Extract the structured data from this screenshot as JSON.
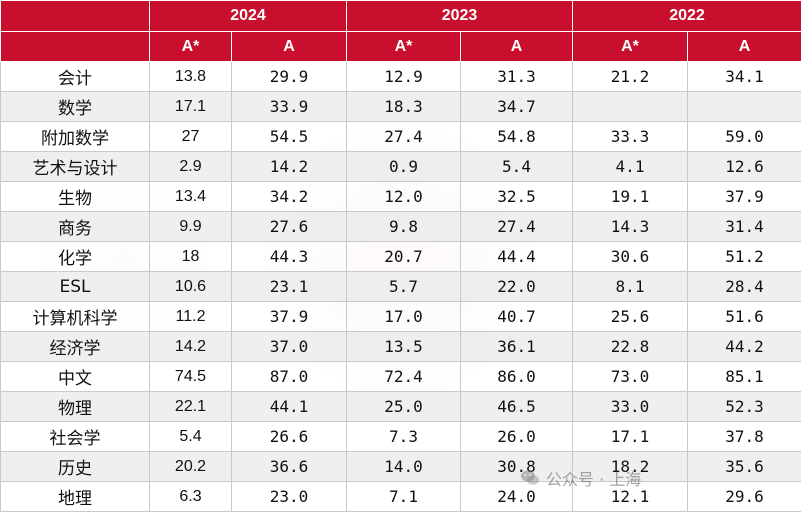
{
  "chart_data": {
    "type": "table",
    "years": [
      "2024",
      "2023",
      "2022"
    ],
    "grades": [
      "A*",
      "A"
    ],
    "rows": [
      {
        "subject": "会计",
        "values": [
          "13.8",
          "29.9",
          "12.9",
          "31.3",
          "21.2",
          "34.1"
        ]
      },
      {
        "subject": "数学",
        "values": [
          "17.1",
          "33.9",
          "18.3",
          "34.7",
          "",
          ""
        ]
      },
      {
        "subject": "附加数学",
        "values": [
          "27",
          "54.5",
          "27.4",
          "54.8",
          "33.3",
          "59.0"
        ]
      },
      {
        "subject": "艺术与设计",
        "values": [
          "2.9",
          "14.2",
          "0.9",
          "5.4",
          "4.1",
          "12.6"
        ]
      },
      {
        "subject": "生物",
        "values": [
          "13.4",
          "34.2",
          "12.0",
          "32.5",
          "19.1",
          "37.9"
        ]
      },
      {
        "subject": "商务",
        "values": [
          "9.9",
          "27.6",
          "9.8",
          "27.4",
          "14.3",
          "31.4"
        ]
      },
      {
        "subject": "化学",
        "values": [
          "18",
          "44.3",
          "20.7",
          "44.4",
          "30.6",
          "51.2"
        ]
      },
      {
        "subject": "ESL",
        "values": [
          "10.6",
          "23.1",
          "5.7",
          "22.0",
          "8.1",
          "28.4"
        ]
      },
      {
        "subject": "计算机科学",
        "values": [
          "11.2",
          "37.9",
          "17.0",
          "40.7",
          "25.6",
          "51.6"
        ]
      },
      {
        "subject": "经济学",
        "values": [
          "14.2",
          "37.0",
          "13.5",
          "36.1",
          "22.8",
          "44.2"
        ]
      },
      {
        "subject": "中文",
        "values": [
          "74.5",
          "87.0",
          "72.4",
          "86.0",
          "73.0",
          "85.1"
        ]
      },
      {
        "subject": "物理",
        "values": [
          "22.1",
          "44.1",
          "25.0",
          "46.5",
          "33.0",
          "52.3"
        ]
      },
      {
        "subject": "社会学",
        "values": [
          "5.4",
          "26.6",
          "7.3",
          "26.0",
          "17.1",
          "37.8"
        ]
      },
      {
        "subject": "历史",
        "values": [
          "20.2",
          "36.6",
          "14.0",
          "30.8",
          "18.2",
          "35.6"
        ]
      },
      {
        "subject": "地理",
        "values": [
          "6.3",
          "23.0",
          "7.1",
          "24.0",
          "12.1",
          "29.6"
        ]
      }
    ]
  },
  "watermark": {
    "text": "公众号 · 上海",
    "icon": "wechat-icon"
  },
  "colors": {
    "header_bg": "#c8102e",
    "header_text": "#ffffff",
    "alt_row_bg": "#ececec"
  }
}
